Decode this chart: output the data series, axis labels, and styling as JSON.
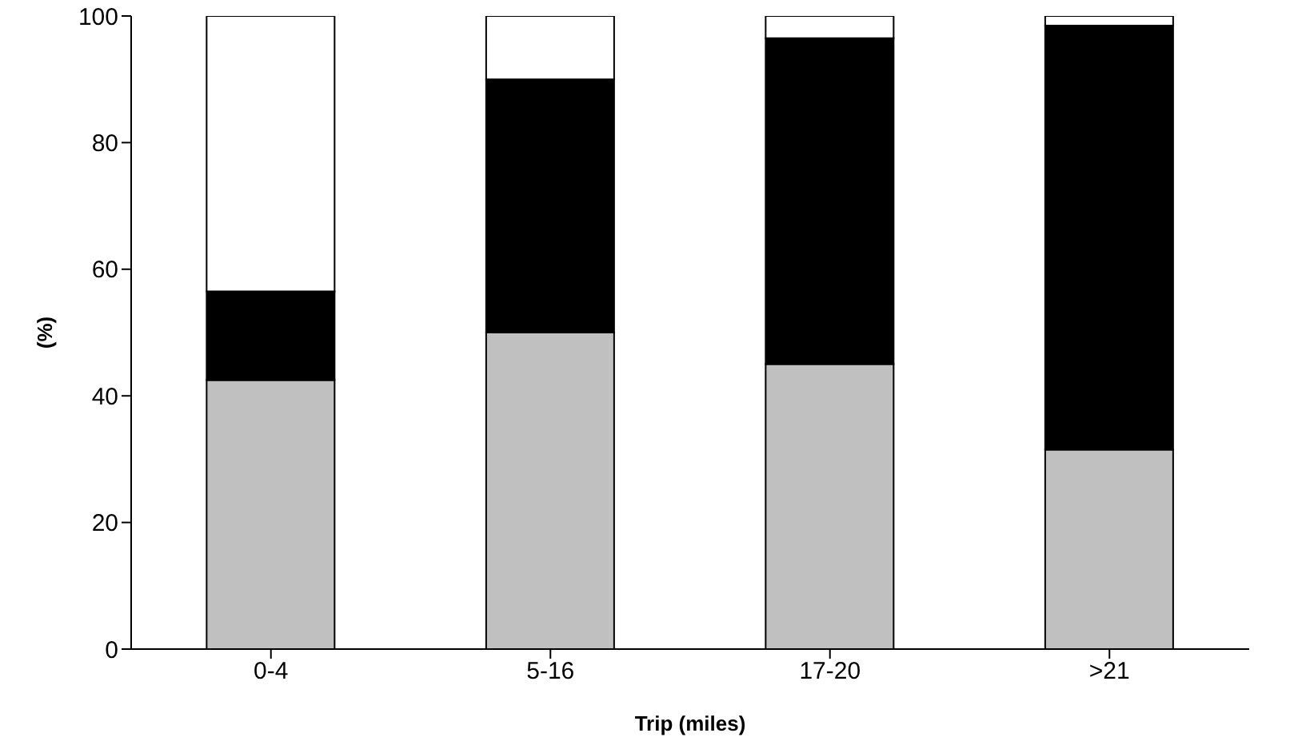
{
  "chart_data": {
    "type": "bar",
    "stacked": true,
    "xlabel": "Trip (miles)",
    "ylabel": "(%)",
    "categories": [
      "0-4",
      "5-16",
      "17-20",
      ">21"
    ],
    "series": [
      {
        "color": "#c0c0c0",
        "values": [
          42.5,
          50,
          45,
          31.5
        ]
      },
      {
        "color": "#000000",
        "values": [
          14,
          40,
          51.5,
          67
        ]
      },
      {
        "color": "#ffffff",
        "values": [
          43.5,
          10,
          3.5,
          1.5
        ]
      }
    ],
    "ylim": [
      0,
      100
    ],
    "yticks": [
      0,
      20,
      40,
      60,
      80,
      100
    ],
    "grid": false,
    "legend": false
  }
}
